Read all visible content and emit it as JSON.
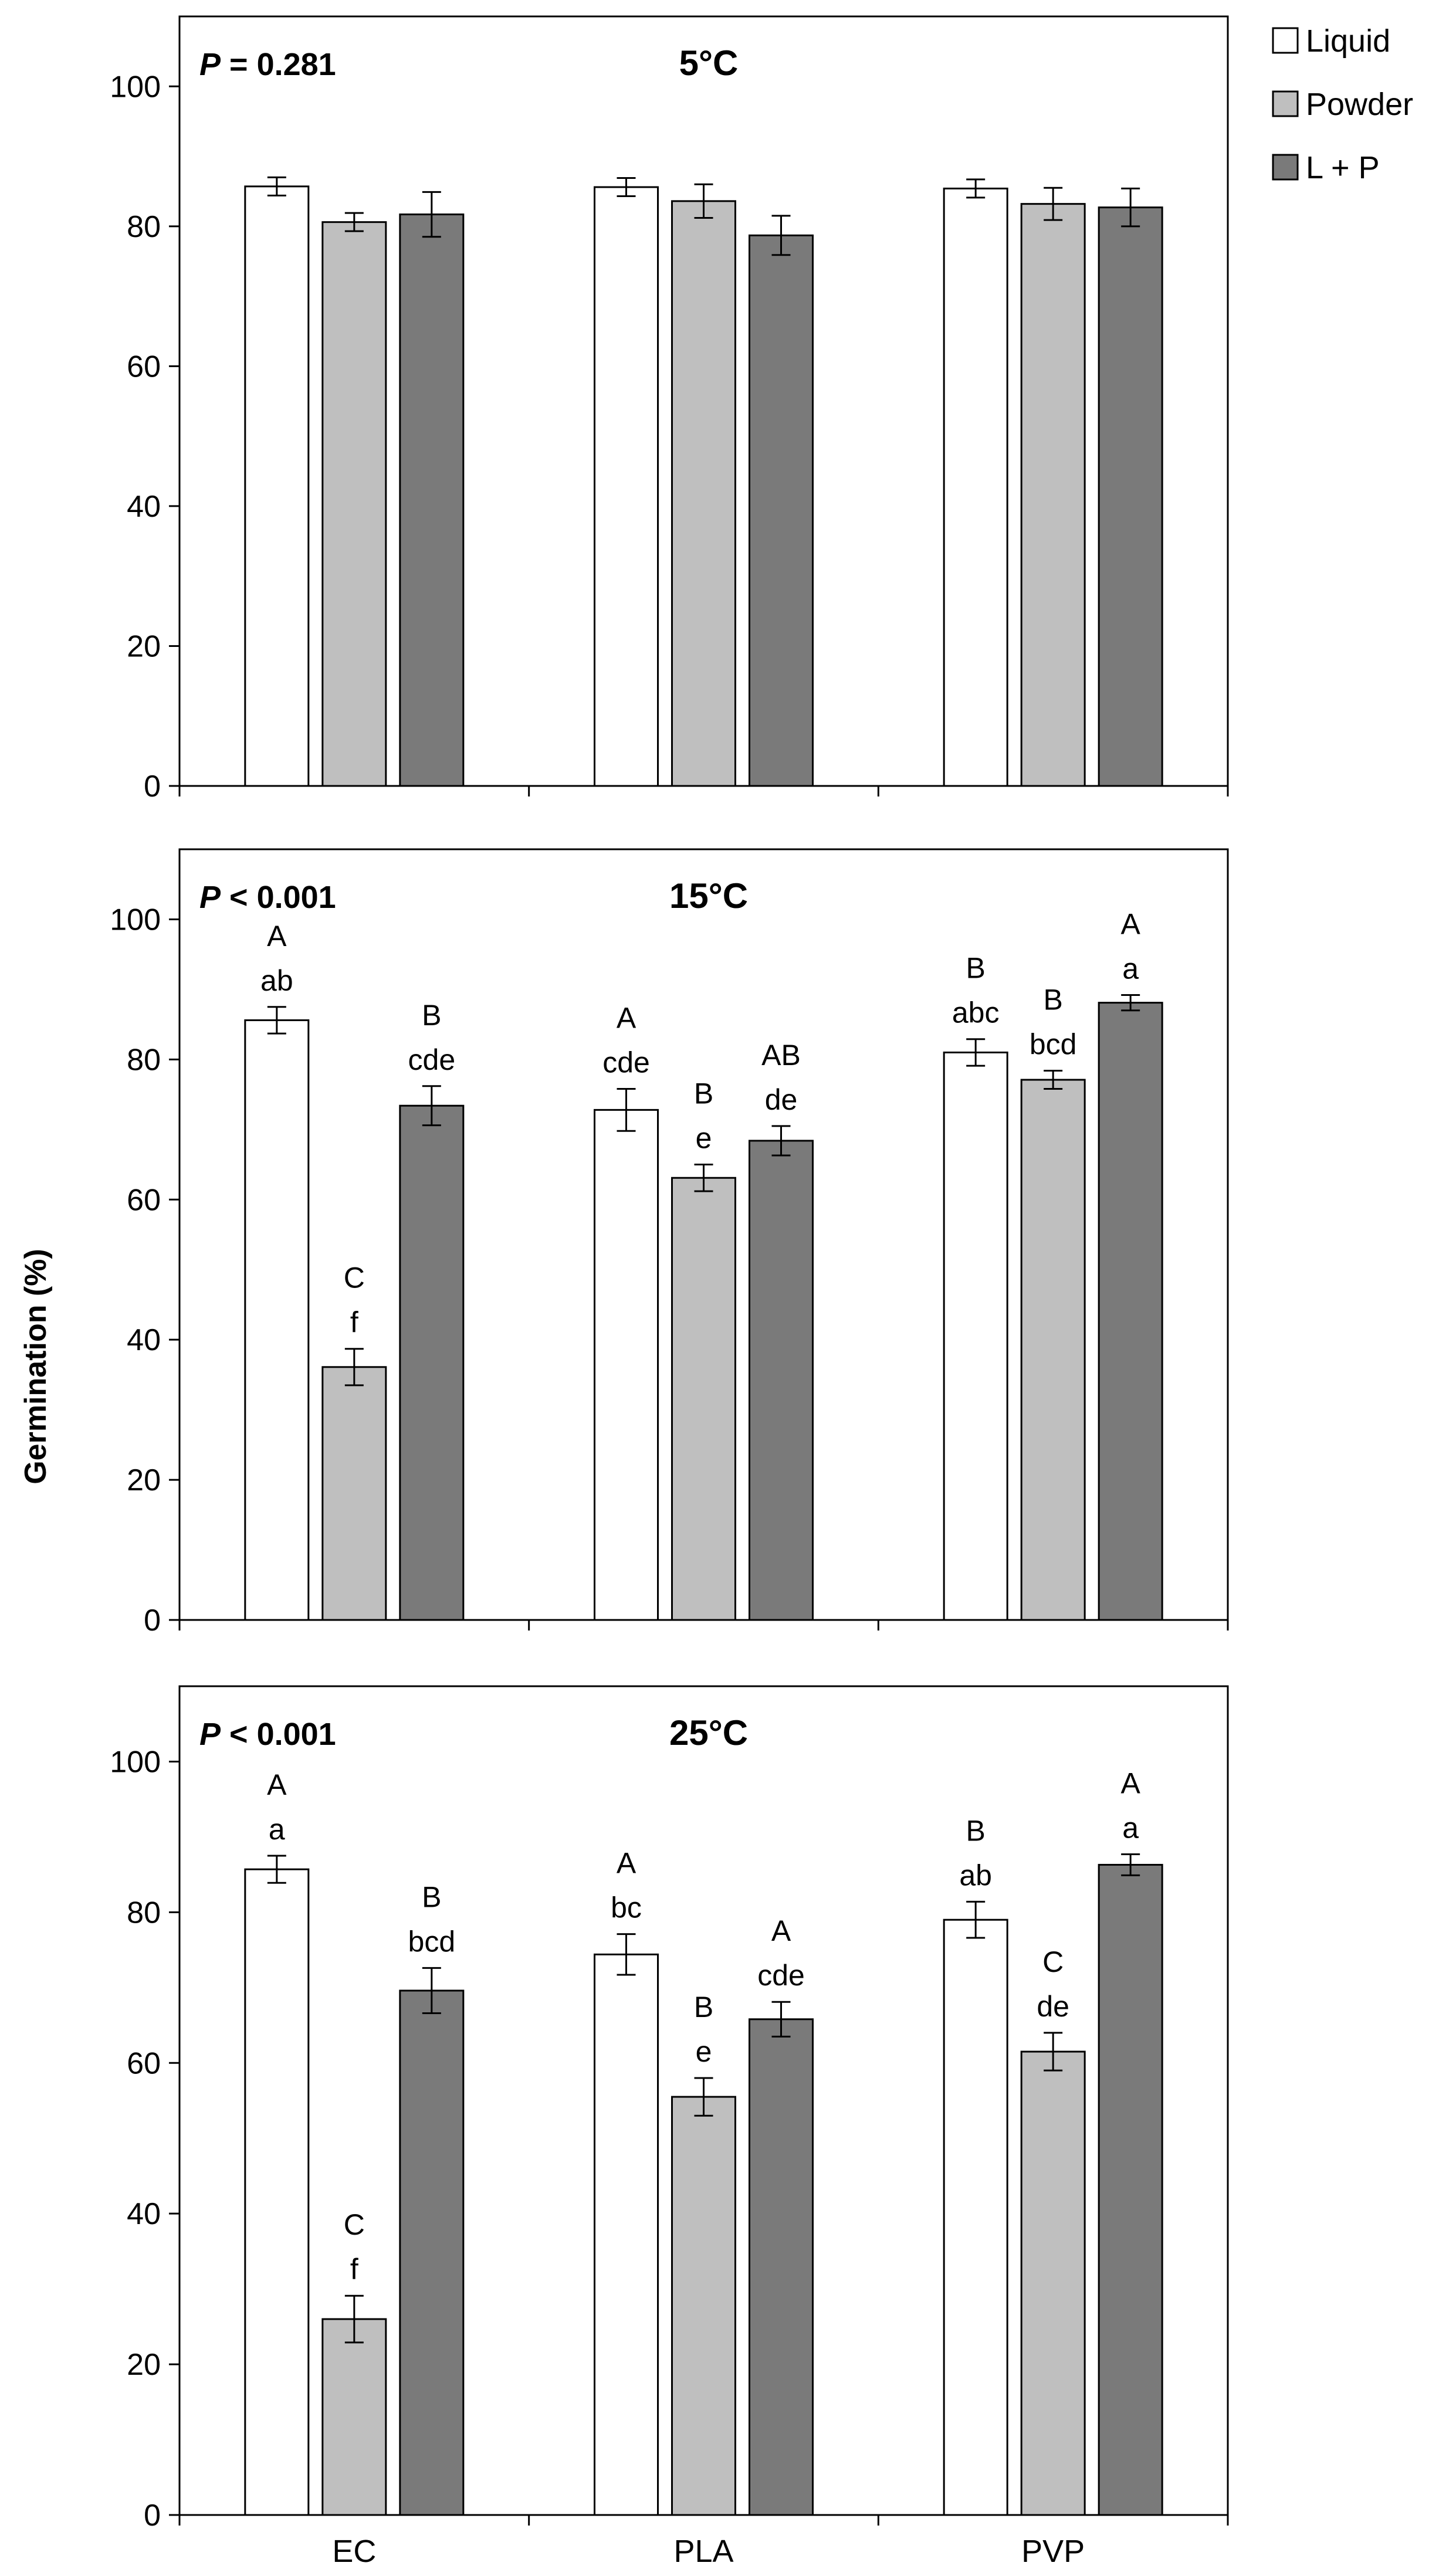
{
  "chart_data": {
    "type": "bar",
    "ylabel": "Germination (%)",
    "ylim": [
      0,
      110
    ],
    "yticks": [
      0,
      20,
      40,
      60,
      80,
      100
    ],
    "categories": [
      "EC",
      "PLA",
      "PVP"
    ],
    "series_names": [
      "Liquid",
      "Powder",
      "L + P"
    ],
    "series_colors": [
      "#ffffff",
      "#bfbfbf",
      "#7a7a7a"
    ],
    "legend_position": "top-right",
    "panels": [
      {
        "title": "5°C",
        "p_symbol": "P",
        "p_text": " = 0.281",
        "series": [
          {
            "name": "Liquid",
            "values": [
              85.7,
              85.6,
              85.4
            ],
            "errors": [
              1.3,
              1.3,
              1.3
            ],
            "letters_upper": [
              "",
              "",
              ""
            ],
            "letters_lower": [
              "",
              "",
              ""
            ]
          },
          {
            "name": "Powder",
            "values": [
              80.6,
              83.6,
              83.2
            ],
            "errors": [
              1.3,
              2.4,
              2.3
            ],
            "letters_upper": [
              "",
              "",
              ""
            ],
            "letters_lower": [
              "",
              "",
              ""
            ]
          },
          {
            "name": "L + P",
            "values": [
              81.7,
              78.7,
              82.7
            ],
            "errors": [
              3.2,
              2.8,
              2.7
            ],
            "letters_upper": [
              "",
              "",
              ""
            ],
            "letters_lower": [
              "",
              "",
              ""
            ]
          }
        ]
      },
      {
        "title": "15°C",
        "p_symbol": "P",
        "p_text": " < 0.001",
        "series": [
          {
            "name": "Liquid",
            "values": [
              85.6,
              72.8,
              81.0
            ],
            "errors": [
              1.9,
              3.0,
              1.9
            ],
            "letters_upper": [
              "A",
              "A",
              "B"
            ],
            "letters_lower": [
              "ab",
              "cde",
              "abc"
            ]
          },
          {
            "name": "Powder",
            "values": [
              36.1,
              63.1,
              77.1
            ],
            "errors": [
              2.6,
              1.9,
              1.3
            ],
            "letters_upper": [
              "C",
              "B",
              "B"
            ],
            "letters_lower": [
              "f",
              "e",
              "bcd"
            ]
          },
          {
            "name": "L + P",
            "values": [
              73.4,
              68.4,
              88.1
            ],
            "errors": [
              2.8,
              2.1,
              1.1
            ],
            "letters_upper": [
              "B",
              "AB",
              "A"
            ],
            "letters_lower": [
              "cde",
              "de",
              "a"
            ]
          }
        ]
      },
      {
        "title": "25°C",
        "p_symbol": "P",
        "p_text": " < 0.001",
        "series": [
          {
            "name": "Liquid",
            "values": [
              85.7,
              74.4,
              79.0
            ],
            "errors": [
              1.8,
              2.7,
              2.4
            ],
            "letters_upper": [
              "A",
              "A",
              "B"
            ],
            "letters_lower": [
              "a",
              "bc",
              "ab"
            ]
          },
          {
            "name": "Powder",
            "values": [
              26.0,
              55.5,
              61.5
            ],
            "errors": [
              3.1,
              2.5,
              2.5
            ],
            "letters_upper": [
              "C",
              "B",
              "C"
            ],
            "letters_lower": [
              "f",
              "e",
              "de"
            ]
          },
          {
            "name": "L + P",
            "values": [
              69.6,
              65.8,
              86.3
            ],
            "errors": [
              3.0,
              2.3,
              1.4
            ],
            "letters_upper": [
              "B",
              "A",
              "A"
            ],
            "letters_lower": [
              "bcd",
              "cde",
              "a"
            ]
          }
        ]
      }
    ]
  }
}
